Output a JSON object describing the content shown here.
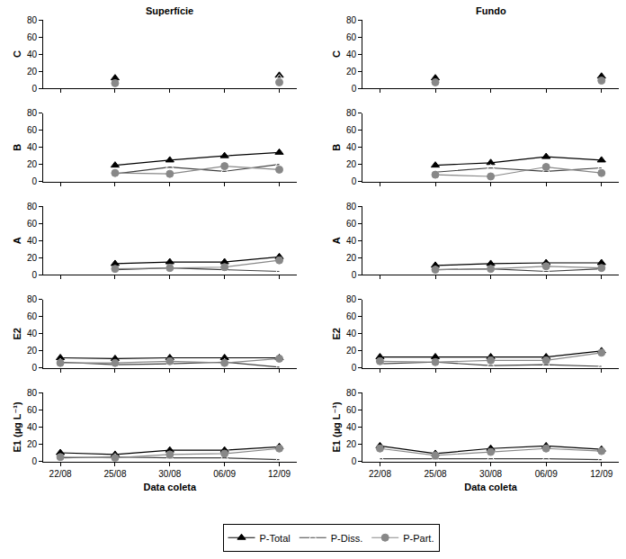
{
  "chart_data": [
    {
      "type": "line",
      "title": "Superfície",
      "ylabel": "C",
      "tick_labels": "y",
      "categories": [
        "22/08",
        "25/08",
        "30/08",
        "06/09",
        "12/09"
      ],
      "ylim": [
        0,
        80
      ],
      "yticks": [
        0,
        20,
        40,
        60,
        80
      ],
      "series": [
        {
          "name": "P-Total",
          "color": "#000000",
          "marker": "triangle-up",
          "values": [
            null,
            12,
            null,
            null,
            15
          ]
        },
        {
          "name": "P-Diss.",
          "color": "#404040",
          "marker": "triangle-up-open",
          "values": [
            null,
            5,
            null,
            null,
            12
          ]
        },
        {
          "name": "P-Part.",
          "color": "#888888",
          "marker": "circle",
          "values": [
            null,
            6,
            null,
            null,
            7
          ]
        }
      ]
    },
    {
      "type": "line",
      "title": "Fundo",
      "ylabel": "C",
      "tick_labels": "y",
      "categories": [
        "22/08",
        "25/08",
        "30/08",
        "06/09",
        "12/09"
      ],
      "ylim": [
        0,
        80
      ],
      "yticks": [
        0,
        20,
        40,
        60,
        80
      ],
      "series": [
        {
          "name": "P-Total",
          "color": "#000000",
          "marker": "triangle-up",
          "values": [
            null,
            12,
            null,
            null,
            14
          ]
        },
        {
          "name": "P-Diss.",
          "color": "#404040",
          "marker": "triangle-up-open",
          "values": [
            null,
            4,
            null,
            null,
            6
          ]
        },
        {
          "name": "P-Part.",
          "color": "#888888",
          "marker": "circle",
          "values": [
            null,
            7,
            null,
            null,
            9
          ]
        }
      ]
    },
    {
      "type": "line",
      "ylabel": "B",
      "tick_labels": "y",
      "categories": [
        "22/08",
        "25/08",
        "30/08",
        "06/09",
        "12/09"
      ],
      "ylim": [
        0,
        80
      ],
      "yticks": [
        0,
        20,
        40,
        60,
        80
      ],
      "series": [
        {
          "name": "P-Total",
          "color": "#000000",
          "marker": "triangle-up",
          "values": [
            null,
            19,
            25,
            30,
            34
          ]
        },
        {
          "name": "P-Diss.",
          "color": "#404040",
          "marker": "triangle-up-open",
          "values": [
            null,
            9,
            17,
            12,
            20
          ]
        },
        {
          "name": "P-Part.",
          "color": "#888888",
          "marker": "circle",
          "values": [
            null,
            10,
            9,
            18,
            14
          ]
        }
      ]
    },
    {
      "type": "line",
      "ylabel": "B",
      "tick_labels": "y",
      "categories": [
        "22/08",
        "25/08",
        "30/08",
        "06/09",
        "12/09"
      ],
      "ylim": [
        0,
        80
      ],
      "yticks": [
        0,
        20,
        40,
        60,
        80
      ],
      "series": [
        {
          "name": "P-Total",
          "color": "#000000",
          "marker": "triangle-up",
          "values": [
            null,
            19,
            22,
            29,
            25
          ]
        },
        {
          "name": "P-Diss.",
          "color": "#404040",
          "marker": "triangle-up-open",
          "values": [
            null,
            11,
            16,
            12,
            16
          ]
        },
        {
          "name": "P-Part.",
          "color": "#888888",
          "marker": "circle",
          "values": [
            null,
            8,
            6,
            17,
            10
          ]
        }
      ]
    },
    {
      "type": "line",
      "ylabel": "A",
      "tick_labels": "y",
      "categories": [
        "22/08",
        "25/08",
        "30/08",
        "06/09",
        "12/09"
      ],
      "ylim": [
        0,
        80
      ],
      "yticks": [
        0,
        20,
        40,
        60,
        80
      ],
      "series": [
        {
          "name": "P-Total",
          "color": "#000000",
          "marker": "triangle-up",
          "values": [
            null,
            13,
            15,
            15,
            21
          ]
        },
        {
          "name": "P-Diss.",
          "color": "#404040",
          "marker": "triangle-up-open",
          "values": [
            null,
            6,
            8,
            6,
            4
          ]
        },
        {
          "name": "P-Part.",
          "color": "#888888",
          "marker": "circle",
          "values": [
            null,
            7,
            8,
            9,
            17
          ]
        }
      ]
    },
    {
      "type": "line",
      "ylabel": "A",
      "tick_labels": "y",
      "categories": [
        "22/08",
        "25/08",
        "30/08",
        "06/09",
        "12/09"
      ],
      "ylim": [
        0,
        80
      ],
      "yticks": [
        0,
        20,
        40,
        60,
        80
      ],
      "series": [
        {
          "name": "P-Total",
          "color": "#000000",
          "marker": "triangle-up",
          "values": [
            null,
            11,
            13,
            14,
            14
          ]
        },
        {
          "name": "P-Diss.",
          "color": "#404040",
          "marker": "triangle-up-open",
          "values": [
            null,
            6,
            7,
            4,
            7
          ]
        },
        {
          "name": "P-Part.",
          "color": "#888888",
          "marker": "circle",
          "values": [
            null,
            6,
            7,
            10,
            8
          ]
        }
      ]
    },
    {
      "type": "line",
      "ylabel": "E2",
      "tick_labels": "y",
      "categories": [
        "22/08",
        "25/08",
        "30/08",
        "06/09",
        "12/09"
      ],
      "ylim": [
        0,
        80
      ],
      "yticks": [
        0,
        20,
        40,
        60,
        80
      ],
      "series": [
        {
          "name": "P-Total",
          "color": "#000000",
          "marker": "triangle-up",
          "values": [
            12,
            11,
            12,
            12,
            12
          ]
        },
        {
          "name": "P-Diss.",
          "color": "#404040",
          "marker": "triangle-up-open",
          "values": [
            7,
            4,
            5,
            7,
            1
          ]
        },
        {
          "name": "P-Part.",
          "color": "#888888",
          "marker": "circle",
          "values": [
            6,
            6,
            8,
            6,
            11
          ]
        }
      ]
    },
    {
      "type": "line",
      "ylabel": "E2",
      "tick_labels": "y",
      "categories": [
        "22/08",
        "25/08",
        "30/08",
        "06/09",
        "12/09"
      ],
      "ylim": [
        0,
        80
      ],
      "yticks": [
        0,
        20,
        40,
        60,
        80
      ],
      "series": [
        {
          "name": "P-Total",
          "color": "#000000",
          "marker": "triangle-up",
          "values": [
            13,
            13,
            13,
            13,
            20
          ]
        },
        {
          "name": "P-Diss.",
          "color": "#404040",
          "marker": "triangle-up-open",
          "values": [
            5,
            7,
            3,
            4,
            2
          ]
        },
        {
          "name": "P-Part.",
          "color": "#888888",
          "marker": "circle",
          "values": [
            8,
            7,
            9,
            9,
            18
          ]
        }
      ]
    },
    {
      "type": "line",
      "ylabel": "E1 (µg L⁻¹)",
      "xlabel": "Data coleta",
      "legend": "bottom",
      "categories": [
        "22/08",
        "25/08",
        "30/08",
        "06/09",
        "12/09"
      ],
      "ylim": [
        0,
        80
      ],
      "yticks": [
        0,
        20,
        40,
        60,
        80
      ],
      "series": [
        {
          "name": "P-Total",
          "color": "#000000",
          "marker": "triangle-up",
          "values": [
            10,
            8,
            13,
            13,
            17
          ]
        },
        {
          "name": "P-Diss.",
          "color": "#404040",
          "marker": "triangle-up-open",
          "values": [
            4,
            5,
            4,
            4,
            2
          ]
        },
        {
          "name": "P-Part.",
          "color": "#888888",
          "marker": "circle",
          "values": [
            5,
            4,
            8,
            9,
            15
          ]
        }
      ]
    },
    {
      "type": "line",
      "ylabel": "E1 (µg L⁻¹)",
      "xlabel": "Data coleta",
      "categories": [
        "22/08",
        "25/08",
        "30/08",
        "06/09",
        "12/09"
      ],
      "ylim": [
        0,
        80
      ],
      "yticks": [
        0,
        20,
        40,
        60,
        80
      ],
      "series": [
        {
          "name": "P-Total",
          "color": "#000000",
          "marker": "triangle-up",
          "values": [
            18,
            9,
            15,
            18,
            14
          ]
        },
        {
          "name": "P-Diss.",
          "color": "#404040",
          "marker": "triangle-up-open",
          "values": [
            3,
            3,
            3,
            3,
            2
          ]
        },
        {
          "name": "P-Part.",
          "color": "#888888",
          "marker": "circle",
          "values": [
            15,
            7,
            11,
            15,
            12
          ]
        }
      ]
    }
  ]
}
